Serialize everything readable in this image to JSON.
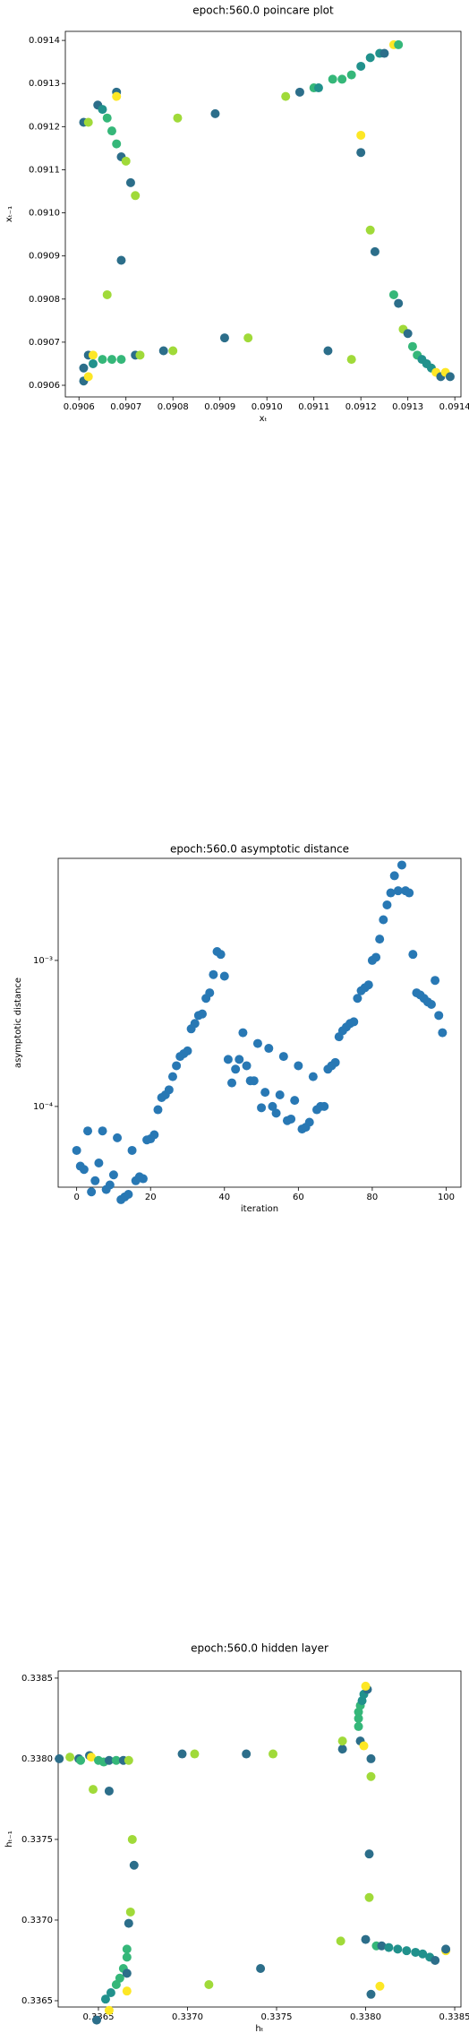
{
  "chart_data": [
    {
      "type": "scatter",
      "title": "epoch:560.0 poincare plot",
      "xlabel": "xₜ",
      "ylabel": "xₜ₋₁",
      "xlim": [
        0.090571,
        0.091413
      ],
      "ylim": [
        0.090573,
        0.091421
      ],
      "xticks": [
        0.0906,
        0.0907,
        0.0908,
        0.0909,
        {
          "value": 0.091,
          "label": "0.0910"
        },
        0.0911,
        0.0912,
        0.0913,
        0.0914
      ],
      "yticks": [
        0.0906,
        0.0907,
        0.0908,
        0.0909,
        {
          "value": 0.091,
          "label": "0.0910"
        },
        0.0911,
        0.0912,
        0.0913,
        0.0914
      ],
      "x": [
        0.09061,
        0.09062,
        0.09064,
        0.09065,
        0.09066,
        0.09067,
        0.09068,
        0.09069,
        0.0907,
        0.09068,
        0.09068,
        0.09071,
        0.09072,
        0.09069,
        0.09066,
        0.09061,
        0.09062,
        0.09061,
        0.09062,
        0.09063,
        0.09063,
        0.09065,
        0.09067,
        0.09069,
        0.09072,
        0.09073,
        0.09078,
        0.0908,
        0.09091,
        0.09096,
        0.09113,
        0.09118,
        0.09081,
        0.09089,
        0.09104,
        0.09107,
        0.0911,
        0.09111,
        0.09114,
        0.09116,
        0.09118,
        0.0912,
        0.09122,
        0.09124,
        0.09125,
        0.09127,
        0.09128,
        0.0912,
        0.0912,
        0.09122,
        0.09123,
        0.09127,
        0.09128,
        0.09129,
        0.0913,
        0.09131,
        0.09132,
        0.09133,
        0.09134,
        0.09135,
        0.09136,
        0.09137,
        0.09138,
        0.09139
      ],
      "y": [
        0.09121,
        0.09121,
        0.09125,
        0.09124,
        0.09122,
        0.09119,
        0.09116,
        0.09113,
        0.09112,
        0.09128,
        0.09127,
        0.09107,
        0.09104,
        0.09089,
        0.09081,
        0.09061,
        0.09062,
        0.09064,
        0.09067,
        0.09067,
        0.09065,
        0.09066,
        0.09066,
        0.09066,
        0.09067,
        0.09067,
        0.09068,
        0.09068,
        0.09071,
        0.09071,
        0.09068,
        0.09066,
        0.09122,
        0.09123,
        0.09127,
        0.09128,
        0.09129,
        0.09129,
        0.09131,
        0.09131,
        0.09132,
        0.09134,
        0.09136,
        0.09137,
        0.09137,
        0.09139,
        0.09139,
        0.09118,
        0.09114,
        0.09096,
        0.09091,
        0.09081,
        0.09079,
        0.09073,
        0.09072,
        0.09069,
        0.09067,
        0.09066,
        0.09065,
        0.09064,
        0.09063,
        0.09062,
        0.09063,
        0.09062
      ],
      "colors": [
        "#2c6e8a",
        "#a0da39",
        "#2c6e8a",
        "#21918c",
        "#35b779",
        "#35b779",
        "#35b779",
        "#2c6e8a",
        "#a0da39",
        "#2c6e8a",
        "#fde725",
        "#2c6e8a",
        "#a0da39",
        "#2c6e8a",
        "#a0da39",
        "#2c6e8a",
        "#fde725",
        "#2c6e8a",
        "#2c6e8a",
        "#fde725",
        "#21918c",
        "#35b779",
        "#35b779",
        "#35b779",
        "#2c6e8a",
        "#a0da39",
        "#2c6e8a",
        "#a0da39",
        "#2c6e8a",
        "#a0da39",
        "#2c6e8a",
        "#a0da39",
        "#a0da39",
        "#2c6e8a",
        "#a0da39",
        "#2c6e8a",
        "#35b779",
        "#21918c",
        "#35b779",
        "#35b779",
        "#35b779",
        "#21918c",
        "#21918c",
        "#21918c",
        "#2c6e8a",
        "#fde725",
        "#35b779",
        "#fde725",
        "#2c6e8a",
        "#a0da39",
        "#2c6e8a",
        "#35b779",
        "#2c6e8a",
        "#a0da39",
        "#2c6e8a",
        "#35b779",
        "#35b779",
        "#21918c",
        "#21918c",
        "#21918c",
        "#fde725",
        "#2c6e8a",
        "#fde725",
        "#2c6e8a"
      ]
    },
    {
      "type": "scatter",
      "title": "epoch:560.0 asymptotic distance",
      "xlabel": "iteration",
      "ylabel": "asymptotic distance",
      "log_y": true,
      "color": "#2878b4",
      "xlim": [
        -5,
        104
      ],
      "ylim": [
        2.8e-05,
        0.005
      ],
      "xticks": [
        0,
        20,
        40,
        60,
        80,
        100
      ],
      "yticks": [
        {
          "value": 0.0001,
          "label": "10⁻⁴"
        },
        {
          "value": 0.001,
          "label": "10⁻³"
        }
      ],
      "x": [
        0,
        1,
        2,
        3,
        4,
        5,
        6,
        7,
        8,
        9,
        10,
        11,
        12,
        13,
        14,
        15,
        16,
        17,
        18,
        19,
        20,
        21,
        22,
        23,
        24,
        25,
        26,
        27,
        28,
        29,
        30,
        31,
        32,
        33,
        34,
        35,
        36,
        37,
        38,
        39,
        40,
        41,
        42,
        43,
        44,
        45,
        46,
        47,
        48,
        49,
        50,
        51,
        52,
        53,
        54,
        55,
        56,
        57,
        58,
        59,
        60,
        61,
        62,
        63,
        64,
        65,
        66,
        67,
        68,
        69,
        70,
        71,
        72,
        73,
        74,
        75,
        76,
        77,
        78,
        79,
        80,
        81,
        82,
        83,
        84,
        85,
        86,
        87,
        88,
        89,
        90,
        91,
        92,
        93,
        94,
        95,
        96,
        97,
        98,
        99
      ],
      "y": [
        5e-05,
        3.9e-05,
        3.7e-05,
        6.8e-05,
        2.6e-05,
        3.1e-05,
        4.1e-05,
        6.8e-05,
        2.7e-05,
        2.9e-05,
        3.4e-05,
        6.1e-05,
        2.3e-05,
        2.4e-05,
        2.5e-05,
        5e-05,
        3.1e-05,
        3.3e-05,
        3.2e-05,
        5.9e-05,
        6e-05,
        6.4e-05,
        9.5e-05,
        0.000115,
        0.00012,
        0.00013,
        0.00016,
        0.00019,
        0.00022,
        0.00023,
        0.00024,
        0.00034,
        0.00037,
        0.00042,
        0.00043,
        0.00055,
        0.0006,
        0.0008,
        0.00115,
        0.0011,
        0.00078,
        0.00021,
        0.000145,
        0.00018,
        0.00021,
        0.00032,
        0.00019,
        0.00015,
        0.00015,
        0.00027,
        9.8e-05,
        0.000125,
        0.00025,
        0.0001,
        9e-05,
        0.00012,
        0.00022,
        8e-05,
        8.2e-05,
        0.00011,
        0.00019,
        7e-05,
        7.2e-05,
        7.8e-05,
        0.00016,
        9.5e-05,
        0.0001,
        0.0001,
        0.00018,
        0.00019,
        0.0002,
        0.0003,
        0.00033,
        0.00035,
        0.00037,
        0.00038,
        0.00055,
        0.00062,
        0.00065,
        0.00068,
        0.001,
        0.00105,
        0.0014,
        0.0019,
        0.0024,
        0.0029,
        0.0038,
        0.003,
        0.0045,
        0.003,
        0.0029,
        0.0011,
        0.0006,
        0.00058,
        0.00055,
        0.00052,
        0.0005,
        0.00073,
        0.00042,
        0.00032
      ]
    },
    {
      "type": "scatter",
      "title": "epoch:560.0 hidden layer",
      "xlabel": "hₜ",
      "ylabel": "hₜ₋₁",
      "xlim": [
        0.336274,
        0.338535
      ],
      "ylim": [
        0.336461,
        0.338544
      ],
      "xticks": [
        0.3365,
        {
          "value": 0.337,
          "label": "0.3370"
        },
        0.3375,
        {
          "value": 0.338,
          "label": "0.3380"
        },
        0.3385
      ],
      "yticks": [
        0.3365,
        {
          "value": 0.337,
          "label": "0.3370"
        },
        0.3375,
        {
          "value": 0.338,
          "label": "0.3380"
        },
        0.3385
      ],
      "x": [
        0.33628,
        0.33634,
        0.33639,
        0.3364,
        0.33645,
        0.33646,
        0.3365,
        0.33653,
        0.33656,
        0.3366,
        0.33664,
        0.33667,
        0.33647,
        0.33656,
        0.33697,
        0.33704,
        0.33733,
        0.33748,
        0.33787,
        0.33787,
        0.33797,
        0.33799,
        0.33796,
        0.33796,
        0.33796,
        0.33797,
        0.33798,
        0.33799,
        0.33801,
        0.338,
        0.33803,
        0.33803,
        0.33802,
        0.33802,
        0.338,
        0.33786,
        0.33803,
        0.33808,
        0.33806,
        0.33809,
        0.33813,
        0.33818,
        0.33823,
        0.33828,
        0.33832,
        0.33836,
        0.33839,
        0.33845,
        0.33845,
        0.33669,
        0.3367,
        0.33668,
        0.33667,
        0.33666,
        0.33666,
        0.33664,
        0.33662,
        0.3366,
        0.33657,
        0.33654,
        0.33666,
        0.33666,
        0.33649,
        0.33656,
        0.33712,
        0.33741
      ],
      "y": [
        0.338,
        0.33801,
        0.338,
        0.33799,
        0.33802,
        0.33801,
        0.33799,
        0.33798,
        0.33799,
        0.33799,
        0.33799,
        0.33799,
        0.33781,
        0.3378,
        0.33803,
        0.33803,
        0.33803,
        0.33803,
        0.33806,
        0.33811,
        0.33811,
        0.33808,
        0.3382,
        0.33825,
        0.33829,
        0.33833,
        0.33836,
        0.3384,
        0.33843,
        0.33845,
        0.338,
        0.33789,
        0.33741,
        0.33714,
        0.33688,
        0.33687,
        0.33654,
        0.33659,
        0.33684,
        0.33684,
        0.33683,
        0.33682,
        0.33681,
        0.3368,
        0.33679,
        0.33677,
        0.33675,
        0.33681,
        0.33682,
        0.3375,
        0.33734,
        0.33705,
        0.33698,
        0.33682,
        0.33677,
        0.3367,
        0.33664,
        0.3366,
        0.33655,
        0.33651,
        0.33656,
        0.33667,
        0.33638,
        0.33644,
        0.3366,
        0.3367
      ],
      "colors": [
        "#2c6e8a",
        "#a0da39",
        "#2c6e8a",
        "#35b779",
        "#2c6e8a",
        "#fde725",
        "#35b779",
        "#35b779",
        "#2c6e8a",
        "#35b779",
        "#2c6e8a",
        "#a0da39",
        "#a0da39",
        "#2c6e8a",
        "#2c6e8a",
        "#a0da39",
        "#2c6e8a",
        "#a0da39",
        "#2c6e8a",
        "#a0da39",
        "#2c6e8a",
        "#fde725",
        "#35b779",
        "#35b779",
        "#35b779",
        "#35b779",
        "#21918c",
        "#21918c",
        "#2c6e8a",
        "#fde725",
        "#2c6e8a",
        "#a0da39",
        "#2c6e8a",
        "#a0da39",
        "#2c6e8a",
        "#a0da39",
        "#2c6e8a",
        "#fde725",
        "#35b779",
        "#2c6e8a",
        "#21918c",
        "#21918c",
        "#21918c",
        "#21918c",
        "#21918c",
        "#21918c",
        "#2c6e8a",
        "#fde725",
        "#2c6e8a",
        "#a0da39",
        "#2c6e8a",
        "#a0da39",
        "#2c6e8a",
        "#35b779",
        "#35b779",
        "#35b779",
        "#35b779",
        "#35b779",
        "#21918c",
        "#21918c",
        "#fde725",
        "#2c6e8a",
        "#2c6e8a",
        "#fde725",
        "#a0da39",
        "#2c6e8a"
      ]
    }
  ]
}
